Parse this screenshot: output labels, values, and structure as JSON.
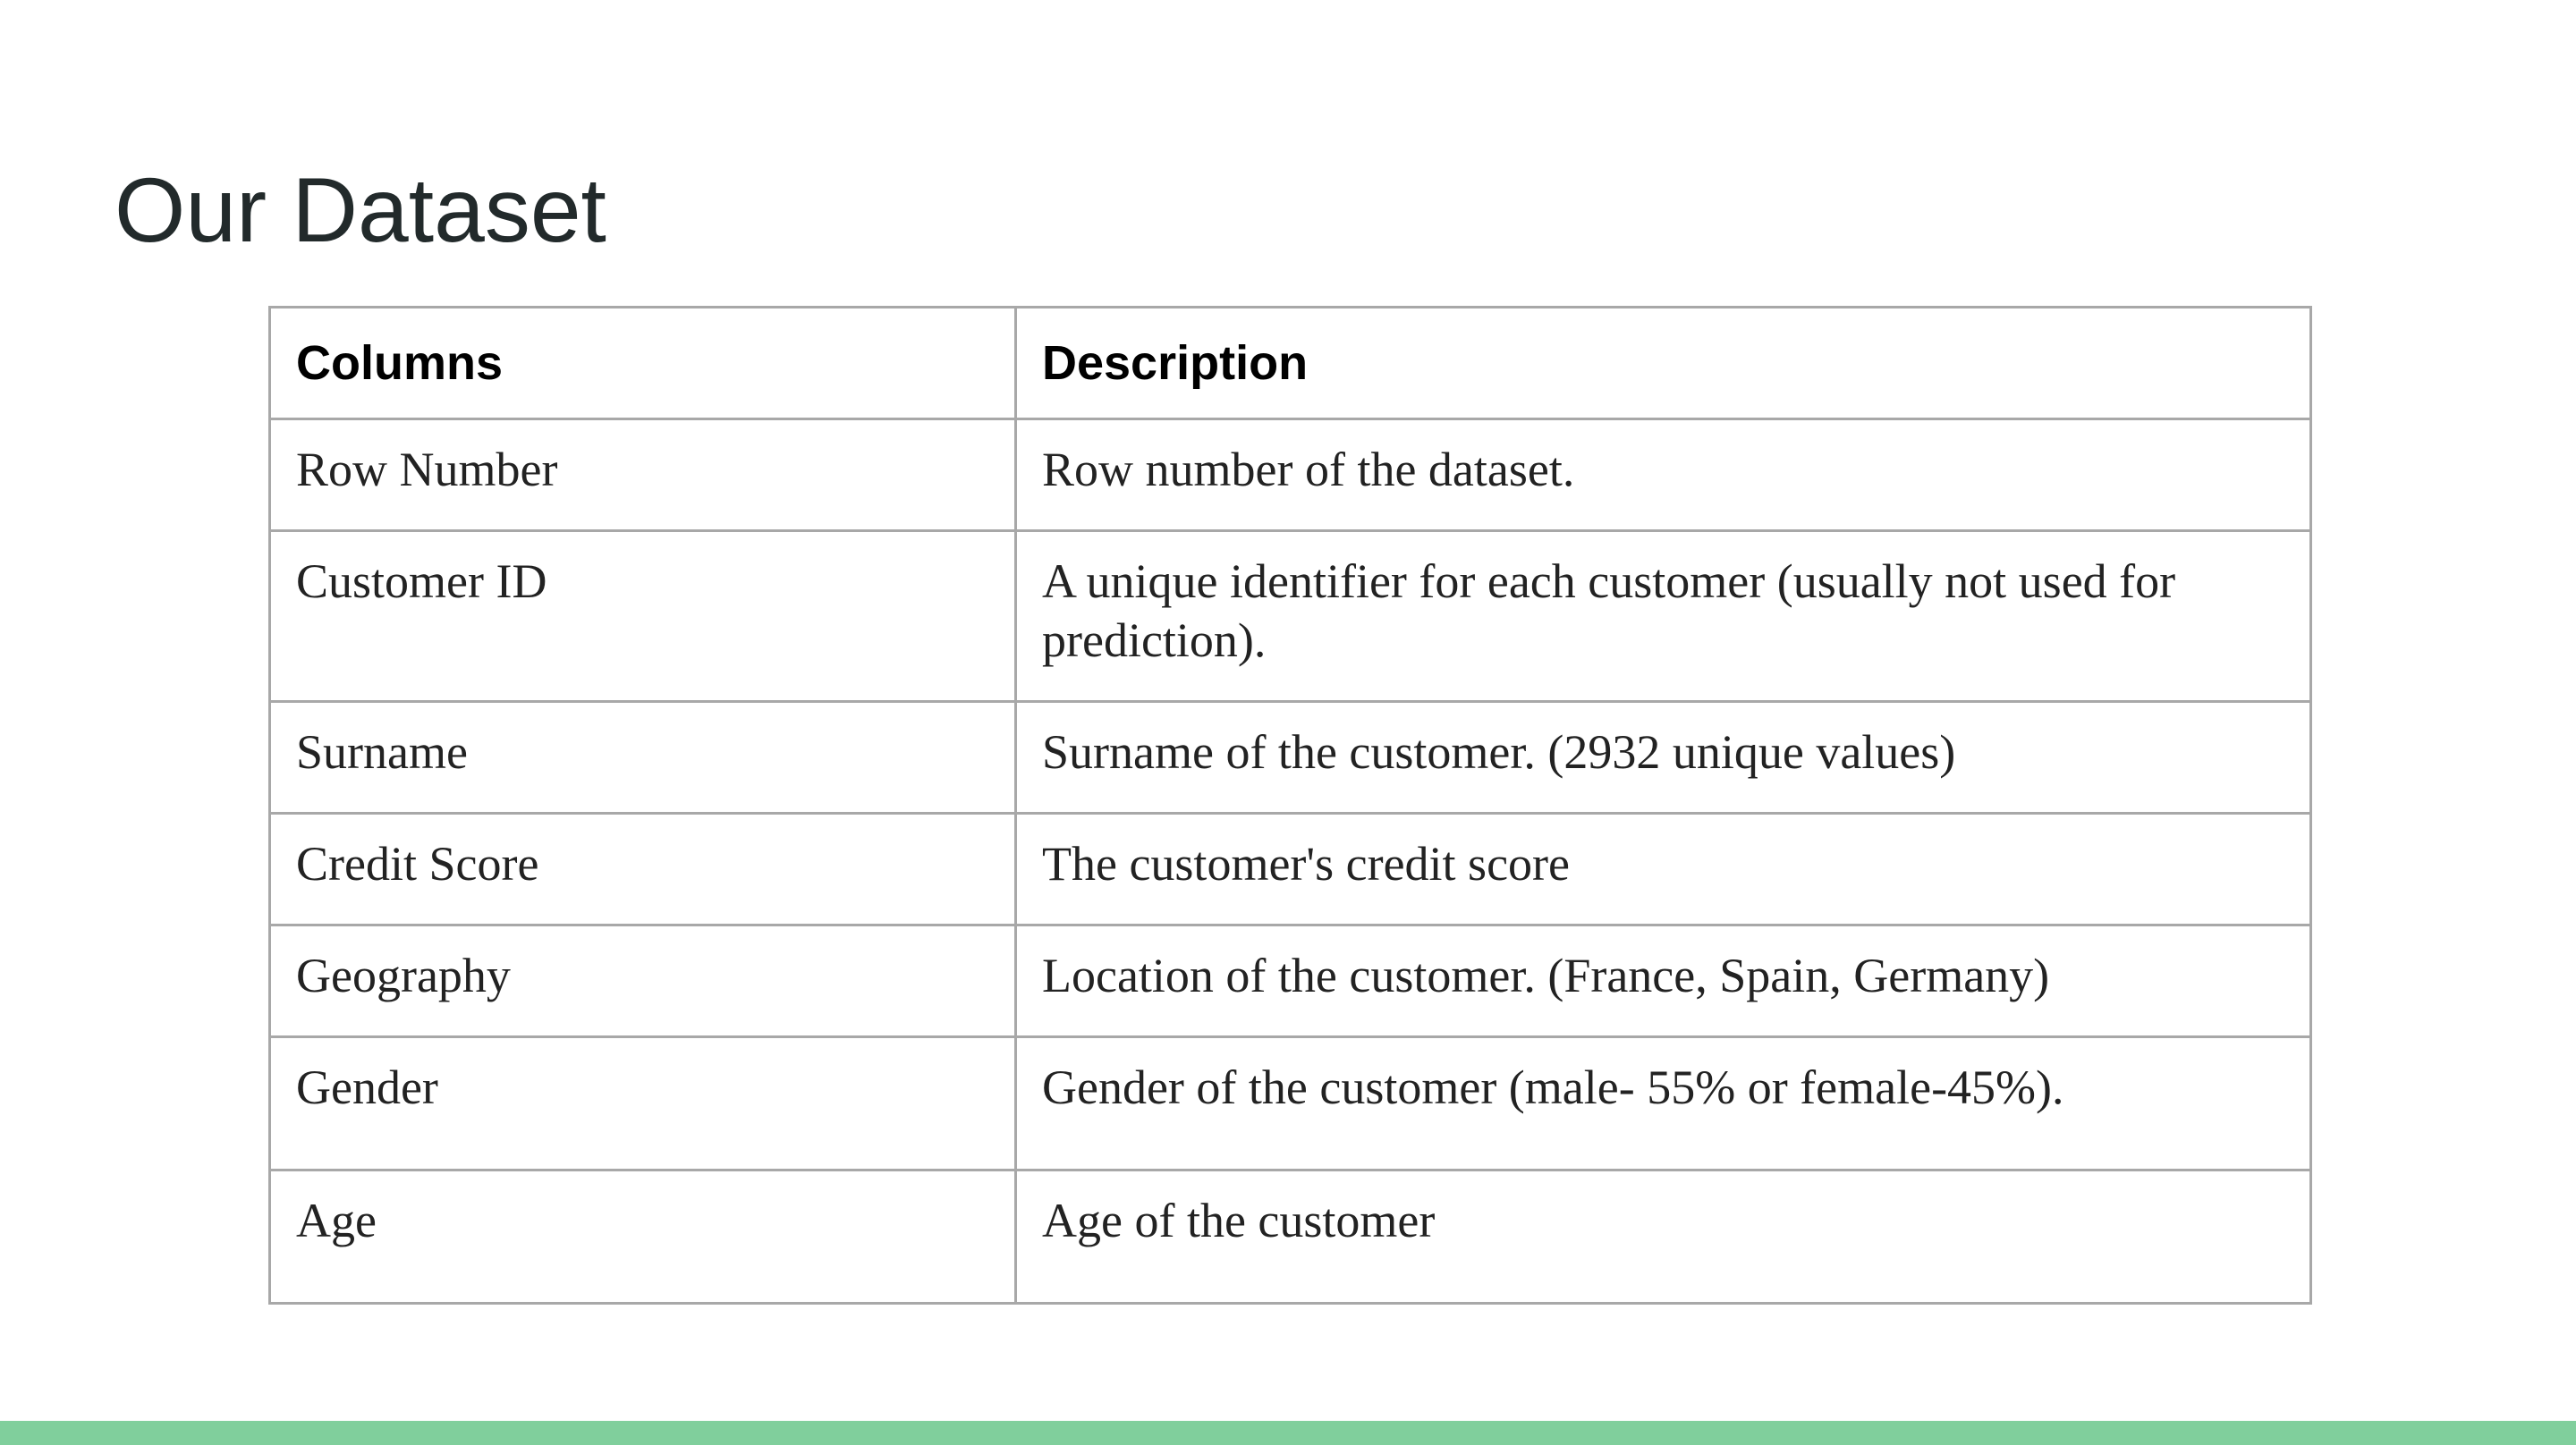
{
  "slide": {
    "title": "Our Dataset",
    "accent_color": "#80cf9c"
  },
  "table": {
    "headers": [
      "Columns",
      "Description"
    ],
    "rows": [
      {
        "column": "Row Number",
        "description": "Row number of the dataset."
      },
      {
        "column": "Customer ID",
        "description": "A unique identifier for each customer (usually not used for prediction)."
      },
      {
        "column": "Surname",
        "description": "Surname of the customer. (2932 unique values)"
      },
      {
        "column": "Credit Score",
        "description": "The customer's credit score"
      },
      {
        "column": "Geography",
        "description": "Location of the customer. (France, Spain, Germany)"
      },
      {
        "column": "Gender",
        "description": "Gender of the customer (male- 55% or female-45%)."
      },
      {
        "column": "Age",
        "description": "Age of the customer"
      }
    ]
  }
}
